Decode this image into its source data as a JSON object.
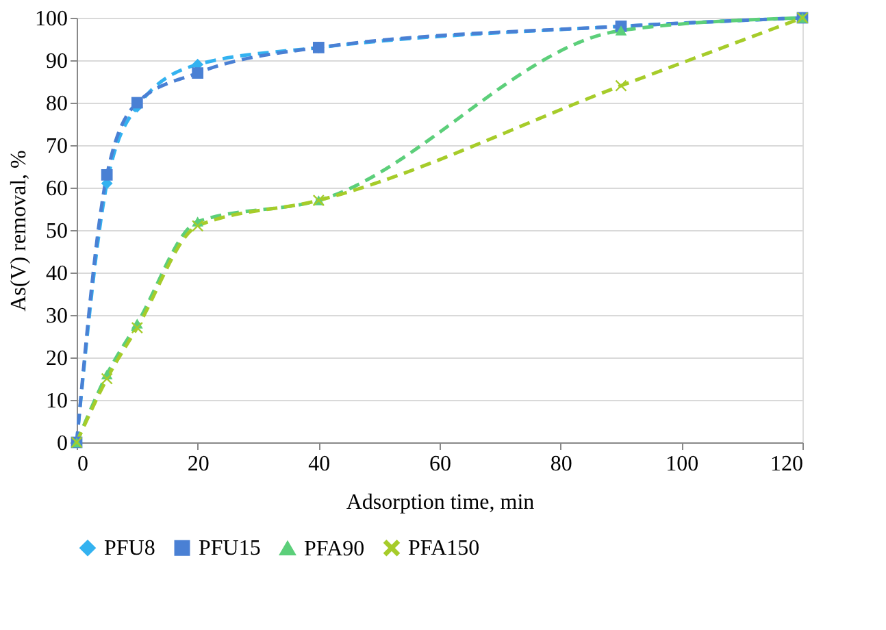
{
  "chart_data": {
    "type": "line",
    "xlabel": "Adsorption time, min",
    "ylabel": "As(V) removal, %",
    "x": [
      0,
      5,
      10,
      20,
      40,
      90,
      120
    ],
    "series": [
      {
        "name": "PFU8",
        "color": "#33b2f0",
        "marker": "diamond",
        "values": [
          0,
          61,
          79,
          89,
          93,
          98,
          100
        ]
      },
      {
        "name": "PFU15",
        "color": "#4a80d4",
        "marker": "square",
        "values": [
          0,
          63,
          80,
          87,
          93,
          98,
          100
        ]
      },
      {
        "name": "PFA90",
        "color": "#5ccf7a",
        "marker": "triangle",
        "values": [
          0,
          16,
          28,
          52,
          57,
          97,
          100
        ]
      },
      {
        "name": "PFA150",
        "color": "#a6cc2a",
        "marker": "cross",
        "values": [
          0,
          15,
          27,
          51,
          57,
          84,
          100
        ]
      }
    ],
    "xlim": [
      0,
      120
    ],
    "xticks": [
      0,
      20,
      40,
      60,
      80,
      100,
      120
    ],
    "ylim": [
      0,
      100
    ],
    "yticks": [
      0,
      10,
      20,
      30,
      40,
      50,
      60,
      70,
      80,
      90,
      100
    ],
    "grid": "y",
    "legend": "bottom",
    "line_style": "dashed"
  }
}
